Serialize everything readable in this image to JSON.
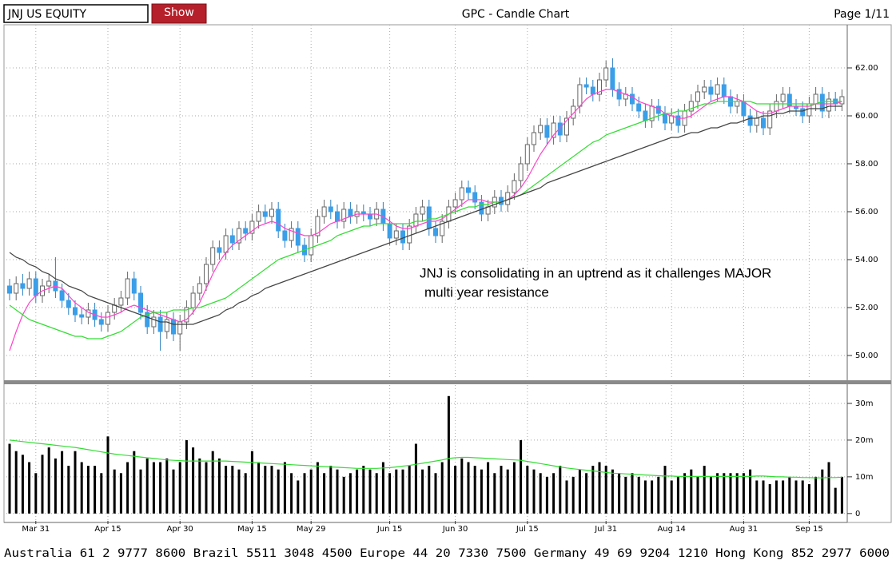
{
  "toolbar": {
    "ticker": "JNJ US EQUITY",
    "button": "Show",
    "page": "Page 1/11"
  },
  "footer": "Australia 61 2 9777 8600 Brazil 5511 3048 4500 Europe 44 20 7330 7500 Germany 49 69 9204 1210 Hong Kong 852 2977 6000",
  "chart_data": {
    "type": "candlestick",
    "title": "GPC - Candle Chart",
    "annotations": [
      "JNJ is consolidating in an uptrend as it challenges MAJOR",
      "multi year resistance"
    ],
    "grid": true,
    "up_color": "#ffffff",
    "down_color": "#3a9ee8",
    "ylim": [
      49,
      63.8
    ],
    "yticks": [
      {
        "value": 50,
        "label": "50.00"
      },
      {
        "value": 52,
        "label": "52.00"
      },
      {
        "value": 54,
        "label": "54.00"
      },
      {
        "value": 56,
        "label": "56.00"
      },
      {
        "value": 58,
        "label": "58.00"
      },
      {
        "value": 60,
        "label": "60.00"
      },
      {
        "value": 62,
        "label": "62.00"
      }
    ],
    "y2lim": [
      -2,
      35
    ],
    "y2ticks": [
      0,
      {
        "value": 10,
        "label": "10m"
      },
      {
        "value": 20,
        "label": "20m"
      },
      {
        "value": 30,
        "label": "30m"
      }
    ],
    "categories": [
      null,
      null,
      null,
      null,
      "Mar 31",
      null,
      null,
      null,
      null,
      null,
      null,
      null,
      null,
      null,
      null,
      "Apr 15",
      null,
      null,
      null,
      null,
      null,
      null,
      null,
      null,
      null,
      null,
      "Apr 30",
      null,
      null,
      null,
      null,
      null,
      null,
      null,
      null,
      null,
      null,
      "May 15",
      null,
      null,
      null,
      null,
      null,
      null,
      null,
      null,
      "May 29",
      null,
      null,
      null,
      null,
      null,
      null,
      null,
      null,
      null,
      null,
      null,
      "Jun 15",
      null,
      null,
      null,
      null,
      null,
      null,
      null,
      null,
      null,
      "Jun 30",
      null,
      null,
      null,
      null,
      null,
      null,
      null,
      null,
      null,
      null,
      "Jul 15",
      null,
      null,
      null,
      null,
      null,
      null,
      null,
      null,
      null,
      null,
      null,
      "Jul 31",
      null,
      null,
      null,
      null,
      null,
      null,
      null,
      null,
      null,
      "Aug 14",
      null,
      null,
      null,
      null,
      null,
      null,
      null,
      null,
      null,
      null,
      "Aug 31",
      null,
      null,
      null,
      null,
      null,
      null,
      null,
      null,
      null,
      "Sep 15",
      null,
      null,
      null,
      null,
      null
    ],
    "open": [
      52.9,
      52.6,
      53.0,
      52.8,
      53.2,
      52.5,
      52.9,
      53.1,
      52.7,
      52.3,
      52.0,
      51.7,
      51.6,
      51.9,
      51.5,
      51.3,
      51.8,
      52.1,
      52.4,
      53.2,
      52.6,
      51.8,
      51.2,
      51.6,
      51.0,
      51.5,
      50.9,
      51.4,
      52.0,
      52.6,
      53.0,
      53.8,
      54.5,
      54.3,
      55.0,
      54.7,
      55.3,
      55.1,
      55.6,
      56.0,
      55.8,
      56.1,
      55.2,
      54.8,
      55.3,
      54.6,
      54.2,
      55.0,
      55.8,
      56.2,
      56.0,
      55.6,
      56.1,
      55.8,
      56.0,
      55.9,
      55.7,
      56.1,
      55.5,
      54.9,
      55.2,
      54.7,
      55.4,
      55.9,
      56.2,
      55.3,
      55.0,
      55.6,
      56.2,
      56.5,
      57.0,
      56.8,
      56.4,
      55.9,
      56.2,
      56.6,
      56.3,
      56.8,
      57.3,
      58.0,
      58.8,
      59.3,
      59.6,
      59.1,
      59.7,
      59.2,
      59.9,
      60.4,
      61.3,
      61.2,
      60.9,
      61.5,
      62.0,
      61.1,
      60.7,
      60.9,
      60.5,
      60.2,
      59.8,
      60.4,
      60.1,
      59.7,
      60.0,
      59.6,
      60.2,
      60.6,
      61.0,
      61.2,
      60.9,
      61.3,
      60.8,
      60.4,
      60.6,
      60.0,
      59.6,
      59.9,
      59.5,
      60.2,
      60.6,
      60.9,
      60.4,
      60.3,
      60.0,
      60.5,
      60.9,
      60.2,
      60.7,
      60.5
    ],
    "high": [
      53.2,
      53.3,
      53.4,
      53.5,
      53.5,
      53.2,
      53.4,
      54.1,
      53.0,
      52.6,
      52.3,
      52.0,
      52.2,
      52.2,
      51.8,
      52.1,
      52.4,
      52.7,
      53.5,
      53.5,
      52.9,
      52.1,
      51.9,
      51.9,
      51.8,
      51.8,
      51.7,
      52.3,
      52.9,
      53.3,
      54.1,
      54.8,
      54.8,
      55.3,
      55.3,
      55.6,
      55.6,
      55.9,
      56.3,
      56.3,
      56.4,
      56.4,
      55.5,
      55.6,
      55.6,
      54.9,
      55.3,
      56.1,
      56.5,
      56.5,
      56.3,
      56.4,
      56.4,
      56.3,
      56.3,
      56.2,
      56.4,
      56.4,
      55.8,
      55.5,
      55.5,
      55.7,
      56.2,
      56.5,
      56.5,
      55.6,
      55.9,
      56.5,
      56.8,
      57.3,
      57.3,
      57.1,
      56.7,
      56.5,
      56.9,
      56.9,
      57.1,
      57.6,
      58.3,
      59.1,
      59.6,
      59.9,
      59.9,
      60.0,
      60.0,
      60.2,
      60.7,
      61.6,
      61.6,
      61.5,
      61.8,
      62.3,
      62.4,
      61.4,
      61.2,
      61.2,
      60.8,
      60.5,
      60.7,
      60.7,
      60.4,
      60.3,
      60.3,
      60.5,
      60.9,
      61.3,
      61.5,
      61.5,
      61.6,
      61.6,
      61.1,
      60.9,
      60.9,
      60.3,
      60.2,
      60.2,
      60.5,
      60.9,
      61.2,
      61.2,
      60.7,
      60.6,
      60.8,
      61.2,
      61.2,
      61.0,
      61.0,
      61.1
    ],
    "low": [
      52.3,
      52.3,
      52.5,
      52.5,
      52.2,
      52.2,
      52.6,
      52.4,
      52.0,
      51.7,
      51.4,
      51.3,
      51.3,
      51.2,
      51.0,
      51.0,
      51.5,
      51.8,
      52.1,
      52.3,
      51.5,
      50.9,
      50.9,
      50.2,
      50.7,
      50.6,
      50.2,
      51.1,
      51.7,
      52.3,
      52.7,
      53.5,
      54.0,
      54.0,
      54.4,
      54.4,
      54.8,
      54.8,
      55.3,
      55.5,
      55.5,
      54.9,
      54.5,
      54.5,
      54.3,
      53.9,
      53.9,
      54.7,
      55.5,
      55.7,
      55.3,
      55.3,
      55.5,
      55.5,
      55.6,
      55.4,
      55.4,
      55.2,
      54.6,
      54.6,
      54.4,
      54.4,
      55.1,
      55.6,
      55.0,
      54.7,
      54.7,
      55.3,
      55.9,
      56.2,
      56.5,
      56.1,
      55.6,
      55.6,
      55.9,
      56.0,
      56.0,
      56.5,
      57.0,
      57.7,
      58.5,
      59.0,
      58.8,
      58.8,
      58.9,
      58.9,
      59.6,
      60.1,
      60.9,
      60.6,
      60.6,
      61.2,
      60.8,
      60.4,
      60.4,
      60.2,
      59.9,
      59.5,
      59.5,
      59.8,
      59.4,
      59.4,
      59.3,
      59.3,
      59.9,
      60.3,
      60.7,
      60.6,
      60.6,
      60.5,
      60.1,
      60.1,
      59.7,
      59.3,
      59.3,
      59.2,
      59.2,
      59.9,
      60.3,
      60.1,
      60.0,
      59.7,
      59.7,
      60.2,
      59.9,
      59.9,
      60.2,
      60.2
    ],
    "close": [
      52.6,
      53.0,
      52.8,
      53.2,
      52.5,
      52.9,
      53.1,
      52.7,
      52.3,
      52.0,
      51.7,
      51.6,
      51.9,
      51.5,
      51.3,
      51.8,
      52.1,
      52.4,
      53.2,
      52.6,
      51.8,
      51.2,
      51.6,
      51.0,
      51.5,
      50.9,
      51.4,
      52.0,
      52.6,
      53.0,
      53.8,
      54.5,
      54.3,
      55.0,
      54.7,
      55.3,
      55.1,
      55.6,
      56.0,
      55.8,
      56.1,
      55.2,
      54.8,
      55.3,
      54.6,
      54.2,
      55.0,
      55.8,
      56.2,
      56.0,
      55.6,
      56.1,
      55.8,
      56.0,
      55.9,
      55.7,
      56.1,
      55.5,
      54.9,
      55.2,
      54.7,
      55.4,
      55.9,
      56.2,
      55.3,
      55.0,
      55.6,
      56.2,
      56.5,
      57.0,
      56.8,
      56.4,
      55.9,
      56.2,
      56.6,
      56.3,
      56.8,
      57.3,
      58.0,
      58.8,
      59.3,
      59.6,
      59.1,
      59.7,
      59.2,
      59.9,
      60.4,
      61.3,
      61.2,
      60.9,
      61.5,
      62.0,
      61.1,
      60.7,
      60.9,
      60.5,
      60.2,
      59.8,
      60.4,
      60.1,
      59.7,
      60.0,
      59.6,
      60.2,
      60.6,
      61.0,
      61.2,
      60.9,
      61.3,
      60.8,
      60.4,
      60.6,
      60.0,
      59.6,
      59.9,
      59.5,
      60.2,
      60.6,
      60.9,
      60.4,
      60.3,
      60.0,
      60.5,
      60.9,
      60.2,
      60.7,
      60.5,
      60.8
    ],
    "series": [
      {
        "color": "#ff44cc",
        "values": [
          50.2,
          51.0,
          51.7,
          52.2,
          52.5,
          52.7,
          52.8,
          52.9,
          52.8,
          52.5,
          52.2,
          52.0,
          51.8,
          51.7,
          51.6,
          51.6,
          51.7,
          51.8,
          52.0,
          52.1,
          52.0,
          51.9,
          51.8,
          51.7,
          51.6,
          51.5,
          51.4,
          51.5,
          51.8,
          52.2,
          52.8,
          53.4,
          53.9,
          54.3,
          54.6,
          54.8,
          55.0,
          55.2,
          55.4,
          55.5,
          55.6,
          55.5,
          55.3,
          55.2,
          55.1,
          55.0,
          55.0,
          55.1,
          55.3,
          55.5,
          55.6,
          55.7,
          55.8,
          55.9,
          55.9,
          55.9,
          55.9,
          55.8,
          55.6,
          55.4,
          55.3,
          55.3,
          55.4,
          55.5,
          55.6,
          55.6,
          55.7,
          55.9,
          56.1,
          56.3,
          56.5,
          56.5,
          56.5,
          56.4,
          56.4,
          56.4,
          56.5,
          56.7,
          57.0,
          57.4,
          57.9,
          58.4,
          58.8,
          59.2,
          59.5,
          59.8,
          60.1,
          60.4,
          60.7,
          60.9,
          61.0,
          61.1,
          61.1,
          61.0,
          60.9,
          60.8,
          60.6,
          60.5,
          60.4,
          60.3,
          60.1,
          60.0,
          59.9,
          59.9,
          60.0,
          60.2,
          60.4,
          60.6,
          60.7,
          60.8,
          60.8,
          60.7,
          60.6,
          60.4,
          60.2,
          60.1,
          60.1,
          60.2,
          60.3,
          60.4,
          60.4,
          60.4,
          60.4,
          60.5,
          60.5,
          60.5,
          60.5,
          60.6
        ]
      },
      {
        "color": "#33dd33",
        "values": [
          52.1,
          51.9,
          51.7,
          51.5,
          51.4,
          51.3,
          51.2,
          51.1,
          51.0,
          50.9,
          50.8,
          50.8,
          50.7,
          50.7,
          50.7,
          50.8,
          50.9,
          51.0,
          51.2,
          51.4,
          51.6,
          51.7,
          51.8,
          51.8,
          51.8,
          51.9,
          51.9,
          51.9,
          52.0,
          52.0,
          52.1,
          52.2,
          52.3,
          52.4,
          52.6,
          52.8,
          53.0,
          53.2,
          53.4,
          53.6,
          53.8,
          54.0,
          54.1,
          54.2,
          54.3,
          54.4,
          54.5,
          54.6,
          54.7,
          54.8,
          55.0,
          55.1,
          55.2,
          55.3,
          55.4,
          55.4,
          55.5,
          55.5,
          55.5,
          55.5,
          55.5,
          55.5,
          55.6,
          55.6,
          55.7,
          55.7,
          55.8,
          55.9,
          56.0,
          56.1,
          56.2,
          56.2,
          56.3,
          56.3,
          56.4,
          56.4,
          56.5,
          56.6,
          56.7,
          56.9,
          57.1,
          57.3,
          57.5,
          57.7,
          57.9,
          58.1,
          58.3,
          58.5,
          58.7,
          58.9,
          59.0,
          59.2,
          59.3,
          59.4,
          59.5,
          59.6,
          59.7,
          59.8,
          59.9,
          60.0,
          60.1,
          60.1,
          60.2,
          60.2,
          60.3,
          60.4,
          60.5,
          60.5,
          60.6,
          60.6,
          60.6,
          60.6,
          60.6,
          60.6,
          60.5,
          60.5,
          60.5,
          60.5,
          60.5,
          60.5,
          60.5,
          60.5,
          60.5,
          60.5,
          60.6,
          60.6,
          60.6,
          60.6
        ]
      },
      {
        "color": "#444444",
        "values": [
          54.3,
          54.1,
          54.0,
          53.8,
          53.7,
          53.5,
          53.4,
          53.2,
          53.1,
          52.9,
          52.8,
          52.7,
          52.5,
          52.4,
          52.3,
          52.2,
          52.1,
          52.0,
          51.9,
          51.8,
          51.7,
          51.6,
          51.5,
          51.4,
          51.4,
          51.3,
          51.3,
          51.3,
          51.3,
          51.4,
          51.5,
          51.6,
          51.7,
          51.9,
          52.0,
          52.2,
          52.3,
          52.5,
          52.6,
          52.8,
          52.9,
          53.0,
          53.1,
          53.2,
          53.3,
          53.4,
          53.5,
          53.6,
          53.7,
          53.8,
          53.9,
          54.0,
          54.1,
          54.2,
          54.3,
          54.4,
          54.5,
          54.6,
          54.7,
          54.8,
          54.9,
          55.0,
          55.1,
          55.2,
          55.3,
          55.4,
          55.5,
          55.6,
          55.7,
          55.8,
          55.9,
          56.0,
          56.1,
          56.2,
          56.3,
          56.4,
          56.5,
          56.6,
          56.7,
          56.8,
          56.9,
          57.0,
          57.2,
          57.3,
          57.4,
          57.5,
          57.6,
          57.7,
          57.8,
          57.9,
          58.0,
          58.1,
          58.2,
          58.3,
          58.4,
          58.5,
          58.6,
          58.7,
          58.8,
          58.9,
          59.0,
          59.1,
          59.1,
          59.2,
          59.3,
          59.3,
          59.4,
          59.5,
          59.5,
          59.6,
          59.7,
          59.7,
          59.8,
          59.9,
          59.9,
          60.0,
          60.0,
          60.1,
          60.1,
          60.2,
          60.2,
          60.2,
          60.3,
          60.3,
          60.3,
          60.4,
          60.4,
          60.4
        ]
      },
      {
        "type": "bar",
        "axis": "y2",
        "color": "#000000",
        "values": [
          19,
          17,
          16,
          14,
          11,
          16,
          18,
          15,
          17,
          13,
          17,
          14,
          13,
          13,
          11,
          21,
          12,
          11,
          14,
          17,
          12,
          15,
          14,
          14,
          15,
          12,
          14,
          20,
          18,
          15,
          14,
          17,
          15,
          13,
          13,
          12,
          11,
          17,
          14,
          13,
          13,
          12,
          14,
          11,
          9,
          11,
          12,
          14,
          11,
          13,
          12,
          10,
          11,
          12,
          13,
          12,
          11,
          14,
          11,
          12,
          12,
          13,
          19,
          12,
          13,
          11,
          14,
          32,
          13,
          15,
          14,
          13,
          12,
          14,
          11,
          13,
          12,
          14,
          20,
          13,
          12,
          11,
          10,
          11,
          13,
          9,
          10,
          12,
          11,
          13,
          14,
          13,
          12,
          11,
          10,
          11,
          10,
          9,
          9,
          10,
          13,
          9,
          10,
          11,
          12,
          10,
          13,
          10,
          11,
          11,
          11,
          11,
          11,
          12,
          9,
          9,
          8,
          9,
          9,
          10,
          9,
          9,
          8,
          10,
          12,
          14,
          7,
          10
        ]
      },
      {
        "axis": "y2",
        "color": "#33dd33",
        "values": [
          20,
          19.8,
          19.6,
          19.4,
          19.2,
          19,
          18.8,
          18.6,
          18.4,
          18.2,
          18,
          17.7,
          17.4,
          17.1,
          16.8,
          16.5,
          16.2,
          16,
          15.8,
          15.6,
          15.4,
          15.2,
          15,
          14.8,
          14.6,
          14.5,
          14.4,
          14.3,
          14.3,
          14.3,
          14.3,
          14.3,
          14.3,
          14.3,
          14.2,
          14.1,
          14,
          13.9,
          13.8,
          13.7,
          13.6,
          13.5,
          13.4,
          13.3,
          13.2,
          13.1,
          13,
          12.9,
          12.8,
          12.7,
          12.6,
          12.5,
          12.4,
          12.3,
          12.3,
          12.3,
          12.3,
          12.4,
          12.5,
          12.7,
          12.9,
          13.1,
          13.4,
          13.7,
          14,
          14.3,
          14.6,
          15,
          15.2,
          15.3,
          15.3,
          15.2,
          15.1,
          15,
          14.9,
          14.8,
          14.7,
          14.6,
          14.5,
          14.2,
          13.9,
          13.6,
          13.3,
          13,
          12.7,
          12.4,
          12.2,
          12,
          11.8,
          11.6,
          11.4,
          11.2,
          11,
          10.9,
          10.8,
          10.7,
          10.6,
          10.5,
          10.4,
          10.3,
          10.2,
          10.2,
          10.1,
          10.1,
          10.1,
          10.1,
          10.1,
          10.1,
          10.1,
          10.1,
          10.1,
          10.1,
          10.1,
          10.1,
          10.2,
          10.2,
          10.1,
          10,
          10,
          9.9,
          9.9,
          9.8,
          9.8,
          9.7,
          9.7,
          9.8,
          9.8,
          9.9
        ]
      }
    ]
  }
}
